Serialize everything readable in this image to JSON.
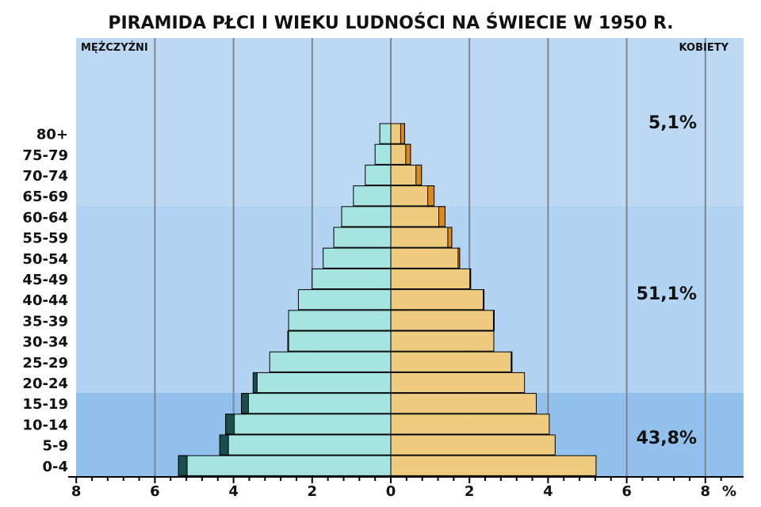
{
  "chart_data": {
    "type": "bar",
    "orientation": "horizontal",
    "subtype": "population-pyramid",
    "title": "PIRAMIDA PŁCI I WIEKU LUDNOŚCI NA ŚWIECIE W 1950 R.",
    "left_label": "MĘŻCZYŹNI",
    "right_label": "KOBIETY",
    "x_unit": "%",
    "x_ticks": [
      "8",
      "6",
      "4",
      "2",
      "0",
      "2",
      "4",
      "6",
      "8"
    ],
    "xlim": [
      -8,
      8
    ],
    "grid": "vertical",
    "categories": [
      "80+",
      "75-79",
      "70-74",
      "65-69",
      "60-64",
      "55-59",
      "50-54",
      "45-49",
      "40-44",
      "35-39",
      "30-34",
      "25-29",
      "20-24",
      "15-19",
      "10-14",
      "5-9",
      "0-4"
    ],
    "series": [
      {
        "side": "left",
        "values": [
          0.28,
          0.4,
          0.65,
          0.95,
          1.25,
          1.45,
          1.72,
          2.0,
          2.35,
          2.6,
          2.62,
          3.08,
          3.5,
          3.8,
          4.2,
          4.35,
          5.4
        ],
        "surplus": [
          0,
          0,
          0,
          0,
          0,
          0,
          0,
          0,
          0,
          0,
          0.02,
          0,
          0.1,
          0.18,
          0.22,
          0.22,
          0.22
        ]
      },
      {
        "side": "right",
        "values": [
          0.35,
          0.5,
          0.78,
          1.1,
          1.38,
          1.55,
          1.75,
          2.03,
          2.37,
          2.63,
          2.62,
          3.08,
          3.4,
          3.7,
          4.03,
          4.18,
          5.22
        ],
        "surplus": [
          0.1,
          0.12,
          0.14,
          0.16,
          0.16,
          0.1,
          0.04,
          0.02,
          0.02,
          0.02,
          0,
          0.02,
          0,
          0,
          0,
          0,
          0
        ]
      }
    ],
    "bands": [
      {
        "label": "5,1%",
        "from": "65-69",
        "to": "80+"
      },
      {
        "label": "51,1%",
        "from": "15-64",
        "to": "60-64"
      },
      {
        "label": "43,8%",
        "from": "0-4",
        "to": "15-19"
      }
    ]
  },
  "colors": {
    "band_old": "#bdd8f3",
    "band_mid": "#b2d3f2",
    "band_young": "#93c1ee",
    "men_bar": "#a6e4e1",
    "men_surplus": "#1c4e4d",
    "women_bar": "#eecb7e",
    "women_surplus": "#d98a1c",
    "grid": "#7f8590"
  }
}
